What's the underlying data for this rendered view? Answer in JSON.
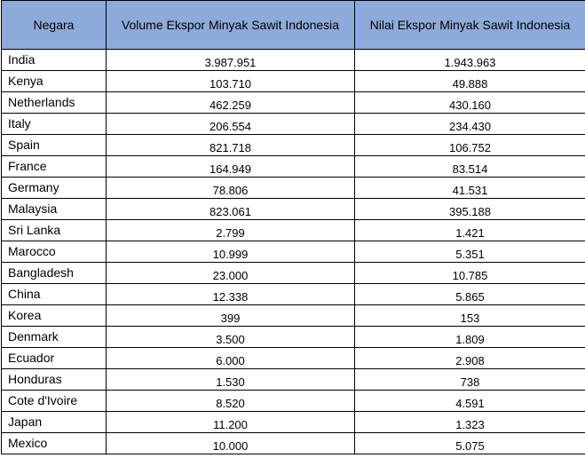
{
  "table": {
    "headers": [
      "Negara",
      "Volume Ekspor Minyak Sawit Indonesia",
      "Nilai Ekspor Minyak Sawit Indonesia"
    ],
    "rows": [
      [
        "India",
        "3.987.951",
        "1.943.963"
      ],
      [
        "Kenya",
        "103.710",
        "49.888"
      ],
      [
        "Netherlands",
        "462.259",
        "430.160"
      ],
      [
        "Italy",
        "206.554",
        "234.430"
      ],
      [
        "Spain",
        "821.718",
        "106.752"
      ],
      [
        "France",
        "164.949",
        "83.514"
      ],
      [
        "Germany",
        "78.806",
        "41.531"
      ],
      [
        "Malaysia",
        "823.061",
        "395.188"
      ],
      [
        "Sri Lanka",
        "2.799",
        "1.421"
      ],
      [
        "Marocco",
        "10.999",
        "5.351"
      ],
      [
        "Bangladesh",
        "23.000",
        "10.785"
      ],
      [
        "China",
        "12.338",
        "5.865"
      ],
      [
        "Korea",
        "399",
        "153"
      ],
      [
        "Denmark",
        "3.500",
        "1.809"
      ],
      [
        "Ecuador",
        "6.000",
        "2.908"
      ],
      [
        "Honduras",
        "1.530",
        "738"
      ],
      [
        "Cote d'Ivoire",
        "8.520",
        "4.591"
      ],
      [
        "Japan",
        "11.200",
        "1.323"
      ],
      [
        "Mexico",
        "10.000",
        "5.075"
      ]
    ]
  }
}
